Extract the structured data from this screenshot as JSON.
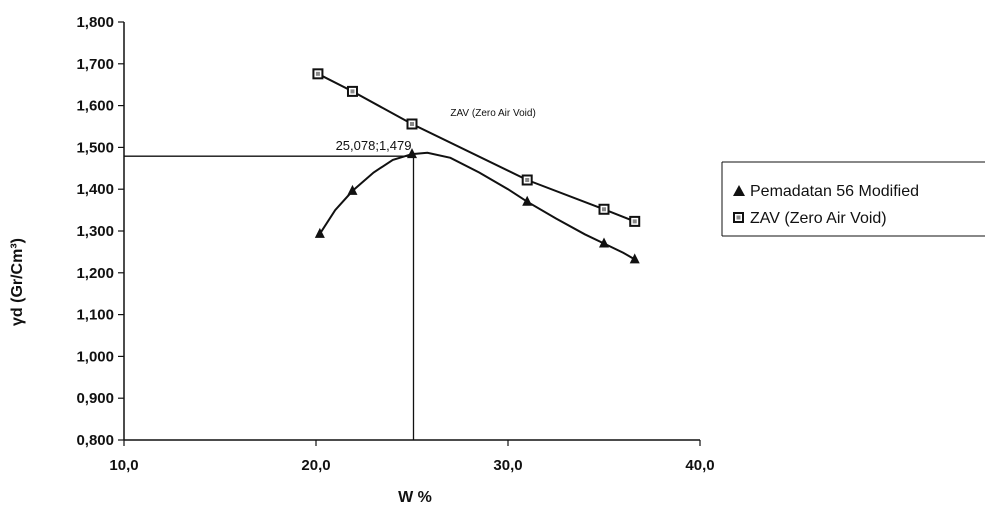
{
  "chart_data": {
    "type": "line",
    "title": "",
    "xlabel": "W %",
    "ylabel": "γd (Gr/Cm³)",
    "xlim": [
      10,
      40
    ],
    "ylim": [
      0.8,
      1.8
    ],
    "x_ticks": [
      10,
      20,
      30,
      40
    ],
    "x_tick_labels": [
      "10,0",
      "20,0",
      "30,0",
      "40,0"
    ],
    "y_ticks": [
      0.8,
      0.9,
      1.0,
      1.1,
      1.2,
      1.3,
      1.4,
      1.5,
      1.6,
      1.7,
      1.8
    ],
    "y_tick_labels": [
      "0,800",
      "0,900",
      "1,000",
      "1,100",
      "1,200",
      "1,300",
      "1,400",
      "1,500",
      "1,600",
      "1,700",
      "1,800"
    ],
    "grid": false,
    "legend_position": "right",
    "series": [
      {
        "name": "Pemadatan 56 Modified",
        "marker": "triangle",
        "color": "#111111",
        "points": [
          {
            "x": 20.2,
            "y": 1.293
          },
          {
            "x": 21.9,
            "y": 1.396
          },
          {
            "x": 25.0,
            "y": 1.484
          },
          {
            "x": 31.0,
            "y": 1.37
          },
          {
            "x": 35.0,
            "y": 1.27
          },
          {
            "x": 36.6,
            "y": 1.232
          }
        ],
        "curve_x": [
          20.2,
          21.0,
          21.9,
          23.0,
          24.0,
          25.0,
          25.8,
          27.0,
          28.5,
          30.0,
          31.0,
          32.5,
          34.0,
          35.0,
          36.0,
          36.6
        ],
        "curve_y": [
          1.293,
          1.35,
          1.396,
          1.44,
          1.47,
          1.484,
          1.487,
          1.475,
          1.44,
          1.4,
          1.37,
          1.33,
          1.292,
          1.27,
          1.248,
          1.232
        ]
      },
      {
        "name": "ZAV (Zero Air Void)",
        "marker": "square",
        "color": "#111111",
        "points": [
          {
            "x": 20.1,
            "y": 1.676
          },
          {
            "x": 21.9,
            "y": 1.634
          },
          {
            "x": 25.0,
            "y": 1.556
          },
          {
            "x": 31.0,
            "y": 1.422
          },
          {
            "x": 35.0,
            "y": 1.352
          },
          {
            "x": 36.6,
            "y": 1.323
          }
        ]
      }
    ],
    "annotations": {
      "optimum_label": "25,078;1,479",
      "optimum_x": 25.078,
      "optimum_y": 1.479,
      "zav_label": "ZAV (Zero Air Void)",
      "zav_label_x": 27.0,
      "zav_label_y": 1.575
    }
  }
}
